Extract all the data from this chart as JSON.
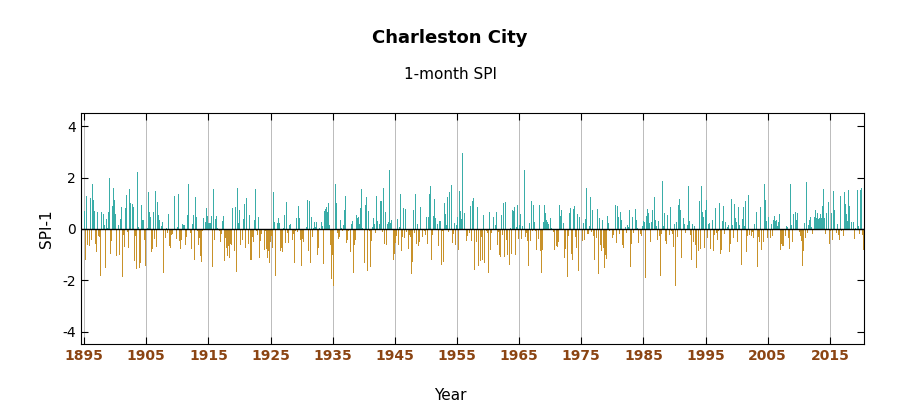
{
  "title": "Charleston City",
  "subtitle": "1-month SPI",
  "ylabel": "SPI-1",
  "xlabel": "Year",
  "ylim": [
    -4.5,
    4.5
  ],
  "yticks": [
    -4,
    -2,
    0,
    2,
    4
  ],
  "xticks": [
    1895,
    1905,
    1915,
    1925,
    1935,
    1945,
    1955,
    1965,
    1975,
    1985,
    1995,
    2005,
    2015
  ],
  "color_positive": "#3aada8",
  "color_negative": "#c8922a",
  "background_color": "#ffffff",
  "grid_color": "#bbbbbb",
  "start_year": 1895,
  "end_year": 2021,
  "title_fontsize": 13,
  "subtitle_fontsize": 11,
  "label_fontsize": 11,
  "tick_label_fontsize": 10,
  "xtick_color": "#8B4513"
}
